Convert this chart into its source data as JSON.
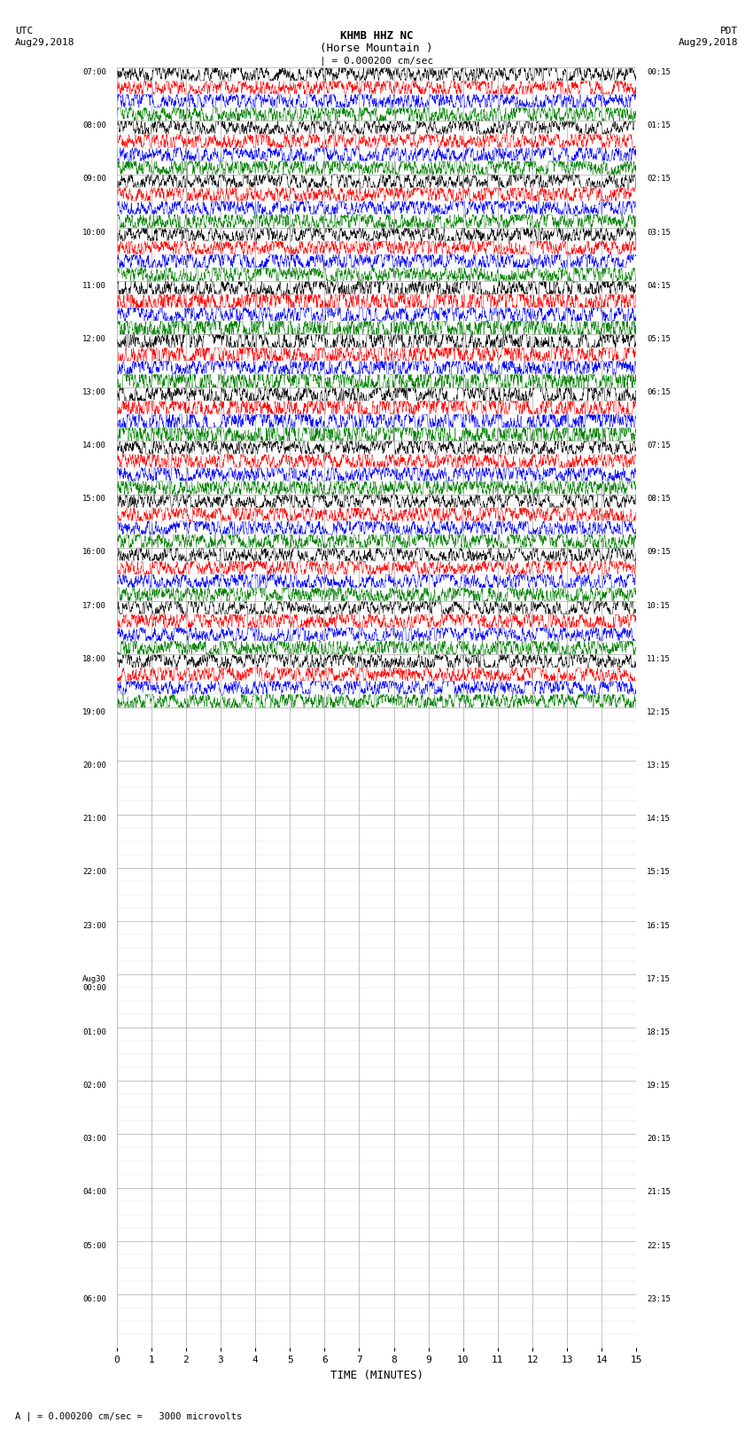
{
  "title_line1": "KHMB HHZ NC",
  "title_line2": "(Horse Mountain )",
  "scale_label": "| = 0.000200 cm/sec",
  "left_header_line1": "UTC",
  "left_header_line2": "Aug29,2018",
  "right_header_line1": "PDT",
  "right_header_line2": "Aug29,2018",
  "footer_note": "A | = 0.000200 cm/sec =   3000 microvolts",
  "xlabel": "TIME (MINUTES)",
  "xlim": [
    0,
    15
  ],
  "xticks": [
    0,
    1,
    2,
    3,
    4,
    5,
    6,
    7,
    8,
    9,
    10,
    11,
    12,
    13,
    14,
    15
  ],
  "left_times": [
    "07:00",
    "08:00",
    "09:00",
    "10:00",
    "11:00",
    "12:00",
    "13:00",
    "14:00",
    "15:00",
    "16:00",
    "17:00",
    "18:00",
    "19:00",
    "20:00",
    "21:00",
    "22:00",
    "23:00",
    "Aug30\n00:00",
    "01:00",
    "02:00",
    "03:00",
    "04:00",
    "05:00",
    "06:00"
  ],
  "right_times": [
    "00:15",
    "01:15",
    "02:15",
    "03:15",
    "04:15",
    "05:15",
    "06:15",
    "07:15",
    "08:15",
    "09:15",
    "10:15",
    "11:15",
    "12:15",
    "13:15",
    "14:15",
    "15:15",
    "16:15",
    "17:15",
    "18:15",
    "19:15",
    "20:15",
    "21:15",
    "22:15",
    "23:15"
  ],
  "num_groups": 24,
  "traces_per_group": 4,
  "colors": [
    "black",
    "red",
    "blue",
    "green"
  ],
  "bg_color": "white",
  "grid_color": "#aaaaaa",
  "active_groups": 12,
  "seed": 1234
}
